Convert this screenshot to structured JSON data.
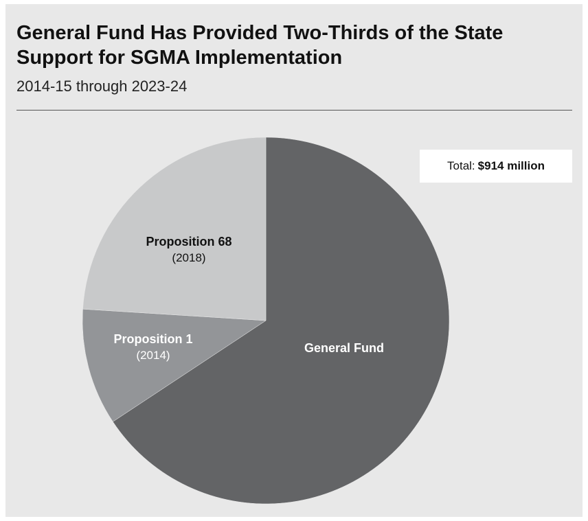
{
  "title": "General Fund Has Provided Two-Thirds of the State Support for SGMA Implementation",
  "subtitle": "2014-15 through 2023-24",
  "total": {
    "label": "Total:",
    "value": "$914 million"
  },
  "chart_data": {
    "type": "pie",
    "unit": "percent of total",
    "start_angle_deg": 0,
    "direction": "clockwise",
    "slices": [
      {
        "label": "General Fund",
        "sublabel": "",
        "value": 65.7,
        "color": "#636466",
        "text_color": "#ffffff"
      },
      {
        "label": "Proposition 1",
        "sublabel": "(2014)",
        "value": 10.3,
        "color": "#939598",
        "text_color": "#ffffff"
      },
      {
        "label": "Proposition 68",
        "sublabel": "(2018)",
        "value": 24.0,
        "color": "#c8c9ca",
        "text_color": "#111111"
      }
    ]
  }
}
